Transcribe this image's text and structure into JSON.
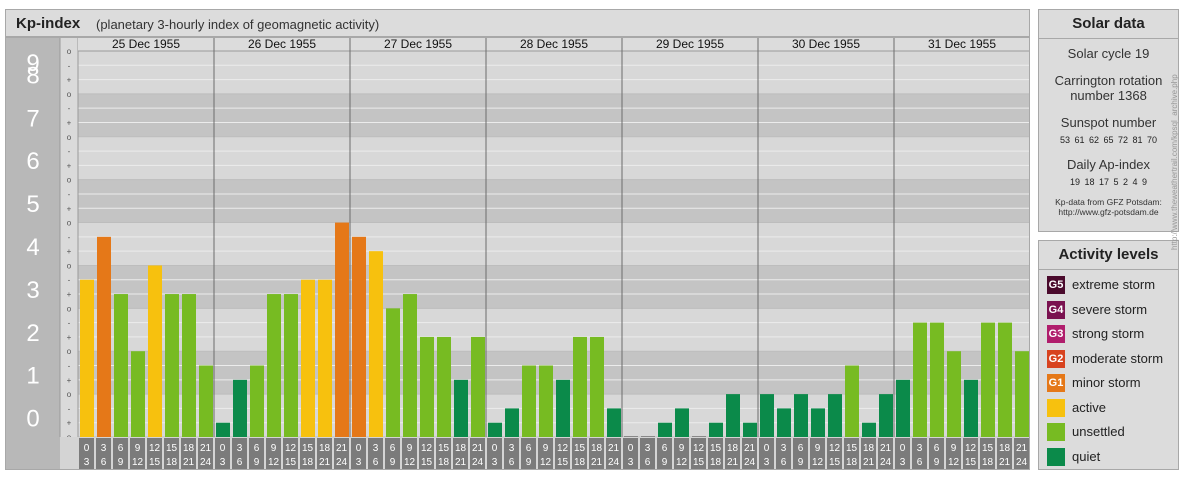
{
  "header": {
    "title": "Kp-index",
    "subtitle": "(planetary 3-hourly index of geomagnetic activity)"
  },
  "chart_data": {
    "type": "bar",
    "title": "Kp-index",
    "subtitle": "(planetary 3-hourly index of geomagnetic activity)",
    "ylim": [
      0,
      9
    ],
    "y_major_ticks": [
      "0",
      "1",
      "2",
      "3",
      "4",
      "5",
      "6",
      "7",
      "8",
      "9"
    ],
    "y_minor_ticks": [
      "o",
      "+",
      "-"
    ],
    "days": [
      "25 Dec 1955",
      "26 Dec 1955",
      "27 Dec 1955",
      "28 Dec 1955",
      "29 Dec 1955",
      "30 Dec 1955",
      "31 Dec 1955"
    ],
    "hour_top": [
      "0",
      "3",
      "6",
      "9",
      "12",
      "15",
      "18",
      "21"
    ],
    "hour_bottom": [
      "3",
      "6",
      "9",
      "12",
      "15",
      "18",
      "21",
      "24"
    ],
    "values": [
      [
        3.667,
        4.667,
        3.333,
        2.0,
        4.0,
        3.333,
        3.333,
        1.667
      ],
      [
        0.333,
        1.333,
        1.667,
        3.333,
        3.333,
        3.667,
        3.667,
        5.0
      ],
      [
        4.667,
        4.333,
        3.0,
        3.333,
        2.333,
        2.333,
        1.333,
        2.333
      ],
      [
        0.333,
        0.667,
        1.667,
        1.667,
        1.333,
        2.333,
        2.333,
        0.667
      ],
      [
        0.0,
        0.0,
        0.333,
        0.667,
        0.0,
        0.333,
        1.0,
        0.333
      ],
      [
        1.0,
        0.667,
        1.0,
        0.667,
        1.0,
        1.667,
        0.333,
        1.0
      ],
      [
        1.333,
        2.667,
        2.667,
        2.0,
        1.333,
        2.667,
        2.667,
        2.0
      ]
    ],
    "grid": true,
    "legend": "right"
  },
  "colors": {
    "quiet": "#0b8a4a",
    "unsettled": "#77bb22",
    "active": "#f7c10e",
    "minor_storm": "#e57818",
    "moderate_storm": "#d8431f",
    "strong_storm": "#b01d6c",
    "severe_storm": "#7a1250",
    "extreme_storm": "#4a0a2c"
  },
  "solar": {
    "title": "Solar data",
    "cycle": "Solar cycle 19",
    "carrington_1": "Carrington rotation",
    "carrington_2": "number 1368",
    "sunspot_label": "Sunspot number",
    "sunspot_values": "53 61 62 65 72 81 70",
    "ap_label": "Daily Ap-index",
    "ap_values": "19 18 17 5 2 4 9",
    "source_1": "Kp-data from GFZ Potsdam:",
    "source_2": "http://www.gfz-potsdam.de"
  },
  "activity": {
    "title": "Activity levels",
    "items": [
      {
        "code": "G5",
        "label": "extreme storm",
        "color": "#4a0a2c"
      },
      {
        "code": "G4",
        "label": "severe storm",
        "color": "#7a1250"
      },
      {
        "code": "G3",
        "label": "strong storm",
        "color": "#b01d6c"
      },
      {
        "code": "G2",
        "label": "moderate storm",
        "color": "#d8431f"
      },
      {
        "code": "G1",
        "label": "minor storm",
        "color": "#e57818"
      },
      {
        "code": "",
        "label": "active",
        "color": "#f7c10e"
      },
      {
        "code": "",
        "label": "unsettled",
        "color": "#77bb22"
      },
      {
        "code": "",
        "label": "quiet",
        "color": "#0b8a4a"
      }
    ]
  },
  "watermark": "http://www.theweathertrail.com/kpsql_archive.php"
}
